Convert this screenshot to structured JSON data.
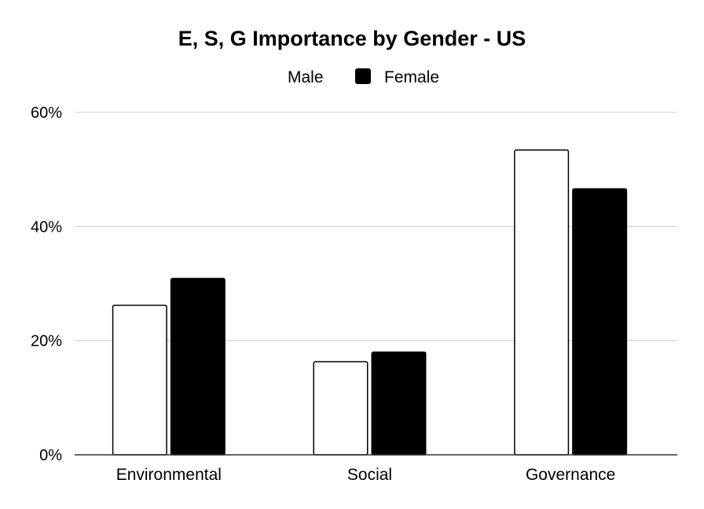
{
  "chart_data": {
    "type": "bar",
    "title": "E, S, G Importance by Gender - US",
    "categories": [
      "Environmental",
      "Social",
      "Governance"
    ],
    "series": [
      {
        "name": "Male",
        "values": [
          26.2,
          16.3,
          53.4
        ],
        "color": "#ffffff",
        "stroke": "#000000"
      },
      {
        "name": "Female",
        "values": [
          30.9,
          18.0,
          46.6
        ],
        "color": "#000000",
        "stroke": "#000000"
      }
    ],
    "ylim": [
      0,
      60
    ],
    "yticks": [
      0,
      20,
      40,
      60
    ],
    "ytick_labels": [
      "0%",
      "20%",
      "40%",
      "60%"
    ],
    "xlabel": "",
    "ylabel": "",
    "grid": true,
    "legend_position": "top-center"
  }
}
